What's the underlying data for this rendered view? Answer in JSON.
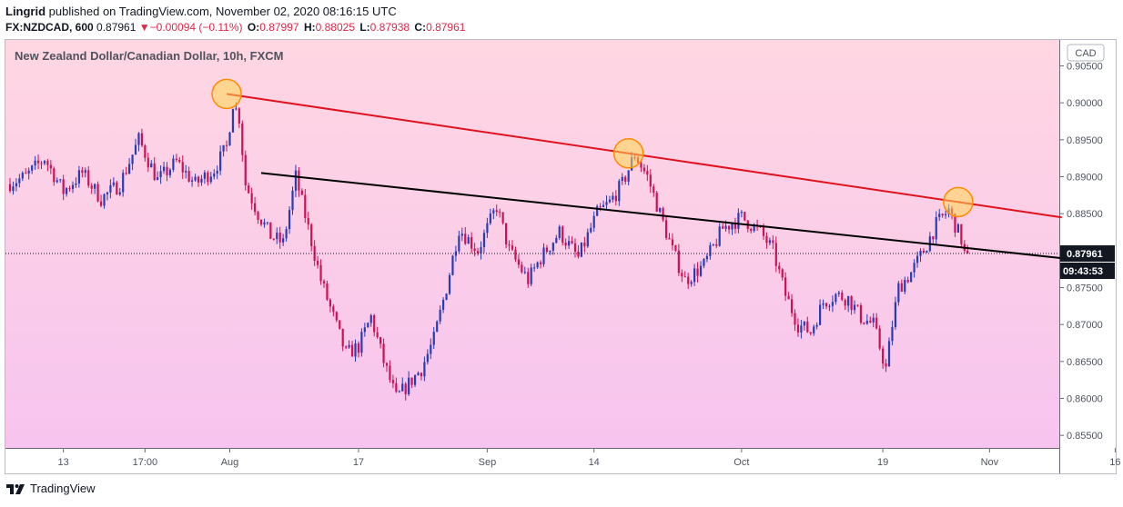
{
  "header": {
    "author": "Lingrid",
    "published_text": "published on TradingView.com, November 02, 2020 08:16:15 UTC",
    "symbol": "FX:NZDCAD, 600",
    "last": "0.87961",
    "change_arrow": "▼",
    "change": "−0.00094 (−0.11%)",
    "o_label": "O:",
    "o": "0.87997",
    "h_label": "H:",
    "h": "0.88025",
    "l_label": "L:",
    "l": "0.87938",
    "c_label": "C:",
    "c": "0.87961"
  },
  "footer": {
    "brand": "TradingView"
  },
  "colors": {
    "up": "#2a3bb7",
    "down": "#cc1155",
    "resistance": "#e0121e",
    "support": "#000000",
    "highlight": "#ffd54f",
    "highlight_border": "#ff8c00",
    "bg_top": "#ffd7e2",
    "bg_bottom": "#f7c4ef"
  },
  "chart_data": {
    "type": "candlestick",
    "title": "New Zealand Dollar/Canadian Dollar, 10h, FXCM",
    "currency": "CAD",
    "y_ticks": [
      "0.90500",
      "0.90000",
      "0.89500",
      "0.89000",
      "0.88500",
      "0.88000",
      "0.87500",
      "0.87000",
      "0.86500",
      "0.86000",
      "0.85500"
    ],
    "ylim": [
      0.8533,
      0.9085
    ],
    "x_ticks": [
      "13",
      "17:00",
      "Aug",
      "17",
      "Sep",
      "14",
      "Oct",
      "19",
      "Nov",
      "16"
    ],
    "last_price": "0.87961",
    "countdown": "09:43:53",
    "x_span_bars": 305,
    "anchors": [
      [
        0,
        0.889
      ],
      [
        6,
        0.89
      ],
      [
        12,
        0.8925
      ],
      [
        18,
        0.888
      ],
      [
        24,
        0.8905
      ],
      [
        30,
        0.887
      ],
      [
        36,
        0.889
      ],
      [
        42,
        0.895
      ],
      [
        48,
        0.8895
      ],
      [
        54,
        0.892
      ],
      [
        60,
        0.889
      ],
      [
        66,
        0.891
      ],
      [
        70,
        0.894
      ],
      [
        72,
        0.9
      ],
      [
        74,
        0.898
      ],
      [
        76,
        0.889
      ],
      [
        80,
        0.885
      ],
      [
        84,
        0.882
      ],
      [
        88,
        0.881
      ],
      [
        92,
        0.89
      ],
      [
        96,
        0.883
      ],
      [
        100,
        0.876
      ],
      [
        104,
        0.871
      ],
      [
        108,
        0.866
      ],
      [
        112,
        0.867
      ],
      [
        116,
        0.871
      ],
      [
        120,
        0.865
      ],
      [
        124,
        0.86
      ],
      [
        128,
        0.862
      ],
      [
        132,
        0.864
      ],
      [
        136,
        0.868
      ],
      [
        140,
        0.875
      ],
      [
        144,
        0.883
      ],
      [
        150,
        0.88
      ],
      [
        156,
        0.886
      ],
      [
        160,
        0.88
      ],
      [
        166,
        0.876
      ],
      [
        170,
        0.879
      ],
      [
        176,
        0.8825
      ],
      [
        182,
        0.879
      ],
      [
        188,
        0.885
      ],
      [
        192,
        0.8865
      ],
      [
        196,
        0.889
      ],
      [
        200,
        0.893
      ],
      [
        204,
        0.89
      ],
      [
        208,
        0.885
      ],
      [
        212,
        0.88
      ],
      [
        216,
        0.876
      ],
      [
        222,
        0.878
      ],
      [
        228,
        0.883
      ],
      [
        234,
        0.8845
      ],
      [
        240,
        0.8825
      ],
      [
        244,
        0.88
      ],
      [
        248,
        0.874
      ],
      [
        252,
        0.87
      ],
      [
        256,
        0.869
      ],
      [
        260,
        0.873
      ],
      [
        264,
        0.874
      ],
      [
        268,
        0.8735
      ],
      [
        272,
        0.871
      ],
      [
        276,
        0.87
      ],
      [
        280,
        0.864
      ],
      [
        282,
        0.87
      ],
      [
        284,
        0.875
      ],
      [
        288,
        0.877
      ],
      [
        292,
        0.88
      ],
      [
        296,
        0.8835
      ],
      [
        300,
        0.8855
      ],
      [
        304,
        0.8815
      ],
      [
        305,
        0.87961
      ]
    ],
    "tick_bars": [
      17,
      43,
      70,
      111,
      152,
      186,
      233,
      278,
      312,
      352
    ],
    "highlight_bars": [
      69,
      197,
      302
    ],
    "resistance": {
      "from": [
        69,
        0.9012
      ],
      "to": [
        335,
        0.8845
      ]
    },
    "support": {
      "from": [
        80,
        0.8905
      ],
      "to": [
        339,
        0.8788
      ]
    }
  }
}
